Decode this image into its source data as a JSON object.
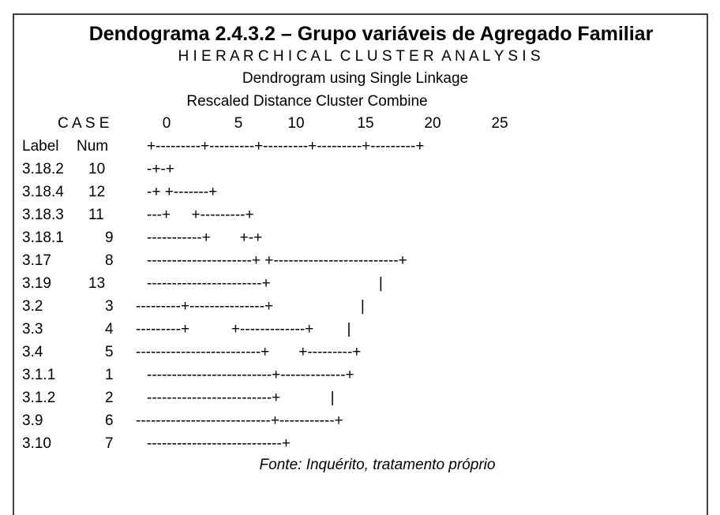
{
  "title": "Dendograma 2.4.3.2 – Grupo variáveis de Agregado Familiar",
  "subtitle": "H I E R A R C H I C A L  C L U S T E R  A N A L Y S I S",
  "method": "Dendrogram using Single Linkage",
  "scale_title": "Rescaled Distance Cluster Combine",
  "header": {
    "case": "C A S E",
    "label": "Label",
    "num": "Num",
    "scale": [
      "0",
      "5",
      "10",
      "15",
      "20",
      "25"
    ],
    "rule": "+---------+---------+---------+---------+---------+"
  },
  "rows": [
    {
      "label": "3.18.2",
      "num": "10",
      "art": "-+-+"
    },
    {
      "label": "3.18.4",
      "num": "12",
      "art": "-+ +-------+"
    },
    {
      "label": "3.18.3",
      "num": "11",
      "art": "---+     +---------+"
    },
    {
      "label": "3.18.1",
      "num": "9",
      "art": "-----------+       +-+"
    },
    {
      "label": "3.17",
      "num": "8",
      "art": "---------------------+ +-------------------------+"
    },
    {
      "label": "3.19",
      "num": "13",
      "art": "-----------------------+                          |"
    },
    {
      "label": "3.2",
      "num": "3",
      "art": "---------+---------------+                     |"
    },
    {
      "label": "3.3",
      "num": "4",
      "art": "---------+          +-------------+        |"
    },
    {
      "label": "3.4",
      "num": "5",
      "art": "-------------------------+       +---------+"
    },
    {
      "label": "3.1.1",
      "num": "1",
      "art": "-------------------------+-------------+"
    },
    {
      "label": "3.1.2",
      "num": "2",
      "art": "-------------------------+            |"
    },
    {
      "label": "3.9",
      "num": "6",
      "art": "---------------------------+-----------+"
    },
    {
      "label": "3.10",
      "num": "7",
      "art": "---------------------------+"
    }
  ],
  "source": "Fonte: Inquérito, tratamento próprio"
}
